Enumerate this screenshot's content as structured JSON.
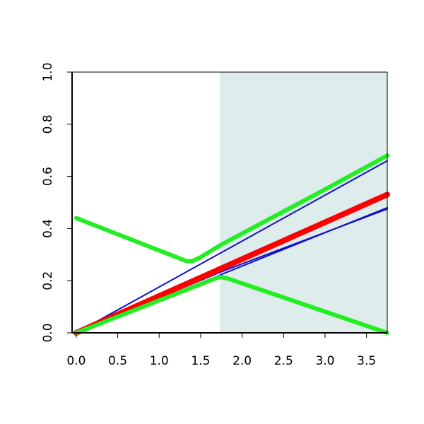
{
  "chart_data": {
    "type": "line",
    "title": "",
    "xlabel": "",
    "ylabel": "",
    "xlim": [
      -0.05,
      3.75
    ],
    "ylim": [
      0.0,
      1.0
    ],
    "xticks": [
      "0.0",
      "0.5",
      "1.0",
      "1.5",
      "2.0",
      "2.5",
      "3.0",
      "3.5"
    ],
    "yticks": [
      "0.0",
      "0.2",
      "0.4",
      "0.6",
      "0.8",
      "1.0"
    ],
    "shaded_region": {
      "x": [
        1.73,
        3.75
      ],
      "color": "#dfecec"
    },
    "colors": {
      "blue": "#1010c8",
      "red": "#ff0000",
      "green": "#22ee22"
    },
    "series": [
      {
        "color": "#1010c8",
        "width": 2,
        "x": [
          0.0,
          3.75
        ],
        "y": [
          0.0,
          0.66
        ]
      },
      {
        "color": "#1010c8",
        "width": 2,
        "x": [
          0.0,
          3.75
        ],
        "y": [
          0.0,
          0.48
        ]
      },
      {
        "color": "#1010c8",
        "width": 2,
        "x": [
          0.0,
          1.73,
          3.75
        ],
        "y": [
          0.0,
          0.232,
          0.475
        ]
      },
      {
        "color": "#ff0000",
        "width": 8,
        "x": [
          0.0,
          3.75
        ],
        "y": [
          0.0,
          0.53
        ]
      },
      {
        "color": "#22ee22",
        "width": 6,
        "x": [
          0.0,
          1.33,
          1.4,
          1.5,
          1.73,
          3.0,
          3.75
        ],
        "y": [
          0.44,
          0.275,
          0.275,
          0.29,
          0.335,
          0.55,
          0.68
        ]
      },
      {
        "color": "#22ee22",
        "width": 6,
        "x": [
          0.0,
          1.73,
          1.83,
          3.75
        ],
        "y": [
          0.0,
          0.215,
          0.208,
          0.0
        ]
      }
    ]
  }
}
